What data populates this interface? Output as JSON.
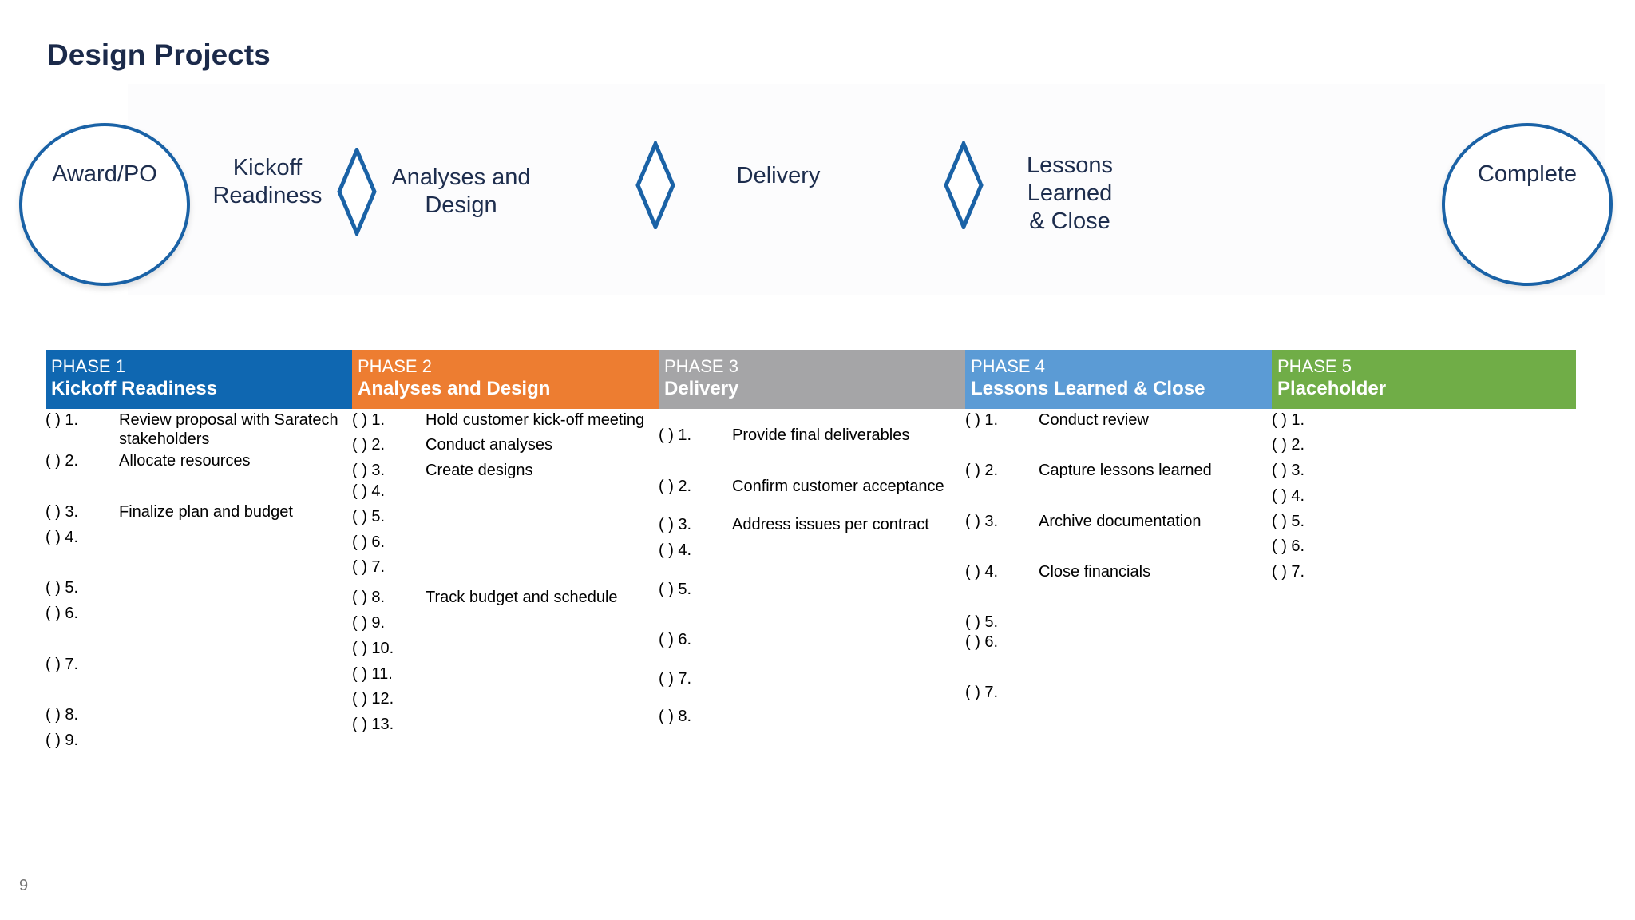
{
  "title": "Design Projects",
  "page_number": "9",
  "flow": {
    "start": "Award/PO",
    "end": "Complete",
    "steps": [
      "Kickoff Readiness",
      "Analyses and Design",
      "Delivery",
      "Lessons Learned & Close"
    ],
    "step_lines": [
      [
        "Kickoff",
        "Readiness"
      ],
      [
        "Analyses and",
        "Design"
      ],
      [
        "Delivery"
      ],
      [
        "Lessons",
        "Learned",
        "& Close"
      ]
    ]
  },
  "colors": {
    "phase1": "#0f67b1",
    "phase2": "#ed7d31",
    "phase3": "#a5a5a7",
    "phase4": "#5b9bd5",
    "phase5": "#70ad47",
    "flow_outline": "#1a62a6",
    "title": "#1b2a4a"
  },
  "phases": [
    {
      "number": "PHASE 1",
      "name": "Kickoff Readiness",
      "items": [
        {
          "num": "(  ) 1.",
          "text": "Review proposal with Saratech stakeholders"
        },
        {
          "num": "(  ) 2.",
          "text": "Allocate resources"
        },
        {
          "num": "(  ) 3.",
          "text": "Finalize plan and budget"
        },
        {
          "num": "(  ) 4.",
          "text": ""
        },
        {
          "num": "(  ) 5.",
          "text": ""
        },
        {
          "num": "(  ) 6.",
          "text": ""
        },
        {
          "num": "(  ) 7.",
          "text": ""
        },
        {
          "num": "(  ) 8.",
          "text": ""
        },
        {
          "num": "(  ) 9.",
          "text": ""
        }
      ]
    },
    {
      "number": "PHASE 2",
      "name": "Analyses and Design",
      "items": [
        {
          "num": "(  ) 1.",
          "text": "Hold customer kick-off meeting"
        },
        {
          "num": "(  ) 2.",
          "text": "Conduct analyses"
        },
        {
          "num": "(  ) 3.",
          "text": "Create designs"
        },
        {
          "num": "(  ) 4.",
          "text": ""
        },
        {
          "num": "(  ) 5.",
          "text": ""
        },
        {
          "num": "(  ) 6.",
          "text": ""
        },
        {
          "num": "(  ) 7.",
          "text": ""
        },
        {
          "num": "(  ) 8.",
          "text": "Track budget and schedule"
        },
        {
          "num": "(  ) 9.",
          "text": ""
        },
        {
          "num": "(  ) 10.",
          "text": ""
        },
        {
          "num": "(  ) 11.",
          "text": ""
        },
        {
          "num": "(  ) 12.",
          "text": ""
        },
        {
          "num": "(  ) 13.",
          "text": ""
        }
      ]
    },
    {
      "number": "PHASE 3",
      "name": "Delivery",
      "items": [
        {
          "num": "(  ) 1.",
          "text": "Provide final deliverables"
        },
        {
          "num": "(  ) 2.",
          "text": "Confirm customer acceptance"
        },
        {
          "num": "(  ) 3.",
          "text": "Address issues per contract"
        },
        {
          "num": "(  ) 4.",
          "text": ""
        },
        {
          "num": "(  ) 5.",
          "text": ""
        },
        {
          "num": "(  ) 6.",
          "text": ""
        },
        {
          "num": "(  ) 7.",
          "text": ""
        },
        {
          "num": "(  ) 8.",
          "text": ""
        }
      ]
    },
    {
      "number": "PHASE 4",
      "name": "Lessons Learned & Close",
      "items": [
        {
          "num": "(  ) 1.",
          "text": "Conduct review"
        },
        {
          "num": "(  ) 2.",
          "text": "Capture lessons learned"
        },
        {
          "num": "(  ) 3.",
          "text": "Archive documentation"
        },
        {
          "num": "(  ) 4.",
          "text": "Close financials"
        },
        {
          "num": "(  ) 5.",
          "text": ""
        },
        {
          "num": "(  ) 6.",
          "text": ""
        },
        {
          "num": "(  ) 7.",
          "text": ""
        }
      ]
    },
    {
      "number": "PHASE 5",
      "name": "Placeholder",
      "items": [
        {
          "num": "(  ) 1.",
          "text": ""
        },
        {
          "num": "(  ) 2.",
          "text": ""
        },
        {
          "num": "(  ) 3.",
          "text": ""
        },
        {
          "num": "(  ) 4.",
          "text": ""
        },
        {
          "num": "(  ) 5.",
          "text": ""
        },
        {
          "num": "(  ) 6.",
          "text": ""
        },
        {
          "num": "(  ) 7.",
          "text": ""
        }
      ]
    }
  ]
}
